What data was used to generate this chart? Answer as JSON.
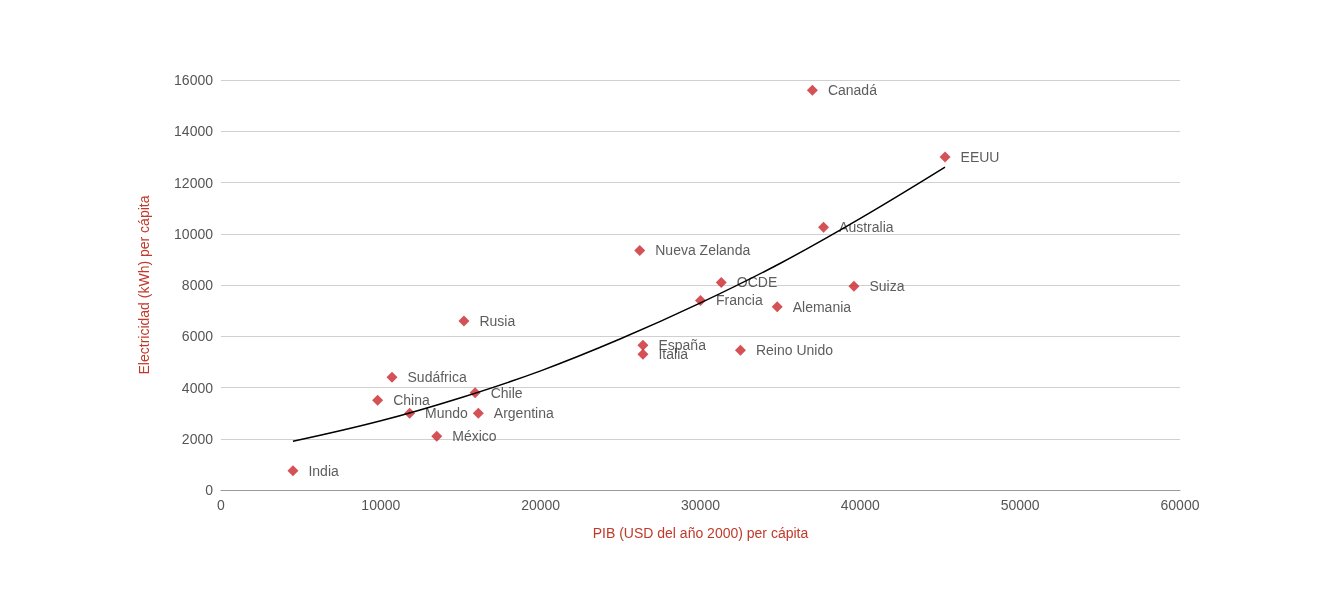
{
  "chart_data": {
    "type": "scatter",
    "xlabel": "PIB (USD del año 2000) per cápita",
    "ylabel": "Electricidad (kWh) per cápita",
    "xlim": [
      0,
      60000
    ],
    "xticks": [
      0,
      10000,
      20000,
      30000,
      40000,
      50000,
      60000
    ],
    "ylim": [
      0,
      16000
    ],
    "yticks": [
      0,
      2000,
      4000,
      6000,
      8000,
      10000,
      12000,
      14000,
      16000
    ],
    "grid": "y",
    "marker": "diamond",
    "series": [
      {
        "color": "#c9252c",
        "x": [
          4500,
          9800,
          10700,
          11800,
          13500,
          15200,
          15900,
          16100,
          26200,
          26400,
          26400,
          30000,
          31300,
          32500,
          34800,
          37000,
          37700,
          39600,
          45300
        ],
        "values": [
          750,
          3500,
          4400,
          3000,
          2100,
          6600,
          3800,
          3000,
          9350,
          5650,
          5300,
          7400,
          8100,
          5450,
          7150,
          15600,
          10250,
          7950,
          13000
        ],
        "value_labels": [
          "India",
          "China",
          "Sudáfrica",
          "Mundo",
          "México",
          "Rusia",
          "Chile",
          "Argentina",
          "Nueva Zelanda",
          "España",
          "Italia",
          "Francia",
          "OCDE",
          "Reino Unido",
          "Alemania",
          "Canadá",
          "Australia",
          "Suiza",
          "EEUU"
        ]
      },
      {
        "type": "line",
        "color": "#000000",
        "marker": "none",
        "x": [
          4500,
          10000,
          15000,
          20000,
          25000,
          30000,
          35000,
          40000,
          45300
        ],
        "values": [
          1900,
          2700,
          3600,
          4650,
          5900,
          7300,
          8850,
          10600,
          12600
        ]
      }
    ]
  }
}
